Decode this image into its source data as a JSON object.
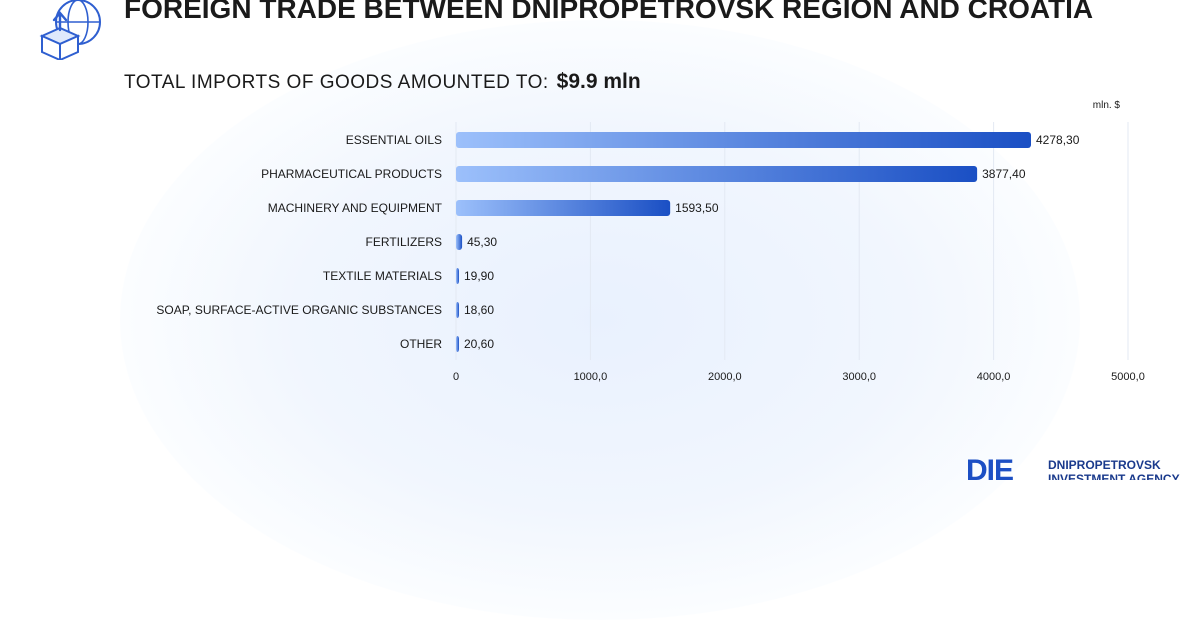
{
  "header": {
    "title": "FOREIGN TRADE BETWEEN DNIPROPETROVSK REGION AND CROATIA",
    "subtitle_label": "TOTAL IMPORTS OF GOODS AMOUNTED TO:",
    "subtitle_value": "$9.9  mln",
    "icon": "import-box-globe-icon"
  },
  "colors": {
    "bar_light": "#9cc0fb",
    "bar_dark": "#1a4fc4",
    "text": "#1a1a1a",
    "grid": "#e3e9f3"
  },
  "chart_data": {
    "type": "bar",
    "orientation": "horizontal",
    "unit_label": "mln. $",
    "categories": [
      "ESSENTIAL OILS",
      "PHARMACEUTICAL PRODUCTS",
      "MACHINERY AND EQUIPMENT",
      "FERTILIZERS",
      "TEXTILE MATERIALS",
      "SOAP, SURFACE-ACTIVE ORGANIC SUBSTANCES",
      "OTHER"
    ],
    "values": [
      4278.3,
      3877.4,
      1593.5,
      45.3,
      19.9,
      18.6,
      20.6
    ],
    "value_labels": [
      "4278,30",
      "3877,40",
      "1593,50",
      "45,30",
      "19,90",
      "18,60",
      "20,60"
    ],
    "xlim": [
      0,
      5000
    ],
    "ticks": [
      0,
      1000,
      2000,
      3000,
      4000,
      5000
    ],
    "tick_labels": [
      "0",
      "1000,0",
      "2000,0",
      "3000,0",
      "4000,0",
      "5000,0"
    ],
    "grid": true
  },
  "logo": {
    "mark": "DIE",
    "text_line1": "DNIPROPETROVSK",
    "text_line2": "INVESTMENT AGENCY"
  }
}
